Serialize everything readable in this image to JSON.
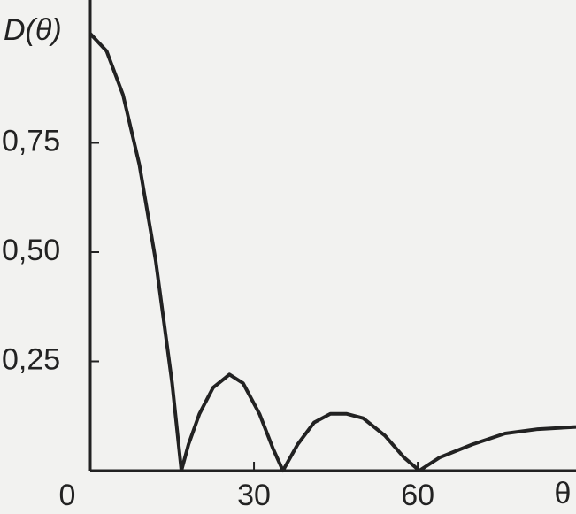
{
  "chart_data": {
    "type": "line",
    "y_label": "D(θ)",
    "x_label": "θ",
    "x": [
      0,
      3,
      6,
      9,
      12,
      15,
      16.7,
      18,
      20,
      22.5,
      25.5,
      28,
      31,
      33.5,
      35.3,
      38,
      41,
      44,
      47,
      50,
      54,
      57.5,
      60.3,
      64,
      70,
      76,
      82,
      89
    ],
    "series": [
      {
        "color": "#222222",
        "values": [
          1.0,
          0.96,
          0.86,
          0.7,
          0.48,
          0.2,
          0,
          0.06,
          0.13,
          0.19,
          0.22,
          0.2,
          0.13,
          0.05,
          0,
          0.06,
          0.11,
          0.13,
          0.13,
          0.12,
          0.08,
          0.03,
          0,
          0.03,
          0.06,
          0.085,
          0.095,
          0.1
        ]
      }
    ],
    "xlim": [
      0,
      89
    ],
    "ylim": [
      0,
      1.0
    ],
    "xticks": [
      0,
      30,
      60
    ],
    "yticks": [
      {
        "value": 0.25,
        "label": "0,25"
      },
      {
        "value": 0.5,
        "label": "0,50"
      },
      {
        "value": 0.75,
        "label": "0,75"
      }
    ],
    "grid": false
  }
}
